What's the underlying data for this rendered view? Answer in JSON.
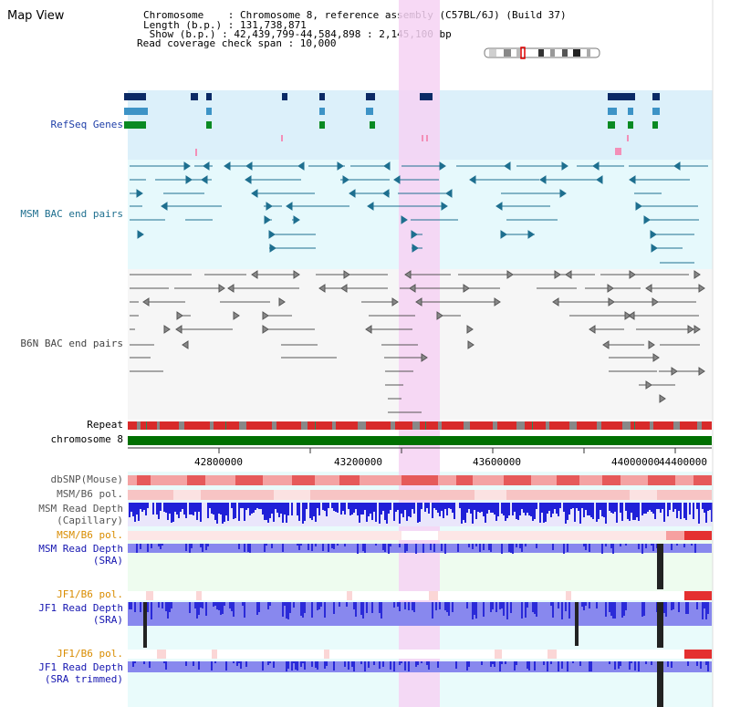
{
  "header": {
    "title": "Map View",
    "chromosome_line": "Chromosome    : Chromosome 8, reference assembly (C57BL/6J) (Build 37)",
    "length_line": "Length (b.p.) : 131,738,871",
    "show_line": " Show (b.p.) : 42,439,799-44,584,898 : 2,145,100 bp",
    "coverage_line": "Read coverage check span : 10,000"
  },
  "tracks": {
    "refseq": "RefSeq Genes",
    "msm_bac": "MSM BAC end pairs",
    "b6n_bac": "B6N BAC end pairs",
    "repeat": "Repeat",
    "chromosome": "chromosome 8",
    "dbsnp": "dbSNP(Mouse)",
    "msm_b6_pol": "MSM/B6 pol.",
    "msm_read_depth_cap_1": "MSM Read Depth",
    "msm_read_depth_cap_2": "(Capillary)",
    "msm_b6_pol_2": "MSM/B6 pol.",
    "msm_read_depth_sra_1": "MSM Read Depth",
    "msm_read_depth_sra_2": "(SRA)",
    "jf1_b6_pol": "JF1/B6 pol.",
    "jf1_read_depth_sra_1": "JF1 Read Depth",
    "jf1_read_depth_sra_2": "(SRA)",
    "jf1_b6_pol_2": "JF1/B6 pol.",
    "jf1_read_depth_trim_1": "JF1 Read Depth",
    "jf1_read_depth_trim_2": "(SRA trimmed)"
  },
  "ruler": {
    "ticks": [
      "42800000",
      "43200000",
      "43600000",
      "44000000",
      "44400000"
    ]
  },
  "colors": {
    "highlight": "#f6d2f3",
    "refseq_bg": "#dcf0fa",
    "bac_bg": "#e6f9fc",
    "chromosome_bar": "#007000",
    "depth_blue": "#2a2ad8"
  }
}
